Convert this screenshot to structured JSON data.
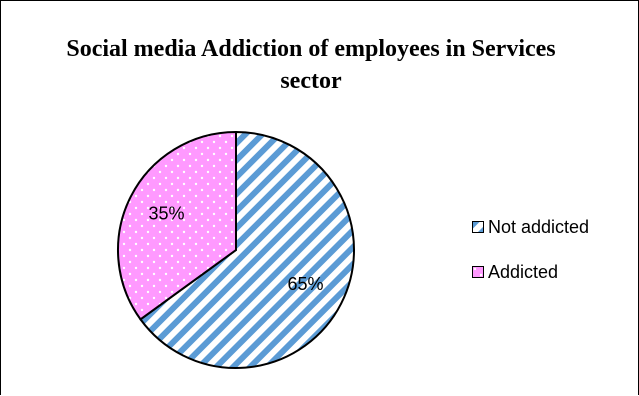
{
  "chart_data": {
    "type": "pie",
    "title": "Social media Addiction of employees in Services sector",
    "categories": [
      "Not addicted",
      "Addicted"
    ],
    "values": [
      65,
      35
    ],
    "data_labels": [
      "65%",
      "35%"
    ],
    "start_angle_deg": 0,
    "direction": "clockwise",
    "legend_position": "right",
    "colors": {
      "not_addicted_stripe": "#5b9bd5",
      "not_addicted_background": "#ffffff",
      "addicted_fill": "#ff99ff",
      "addicted_dots": "#ffffff",
      "outline": "#000000"
    },
    "patterns": {
      "not_addicted": "diagonal-stripes",
      "addicted": "dotted"
    }
  }
}
